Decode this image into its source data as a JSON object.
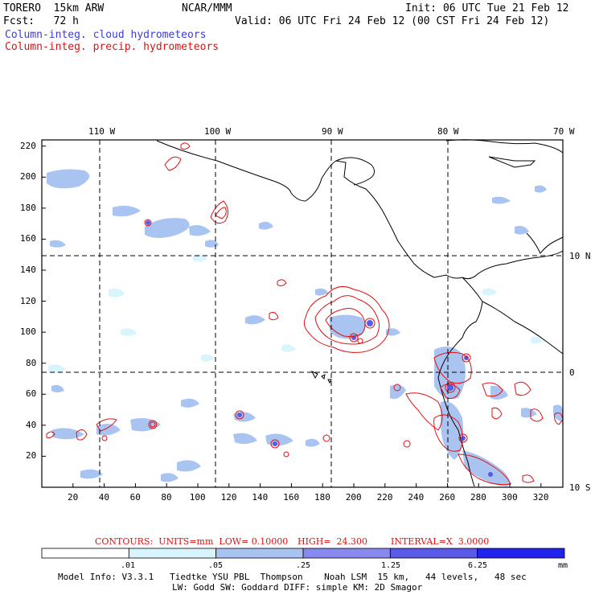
{
  "header": {
    "model": "TORERO  15km ARW",
    "org": "NCAR/MMM",
    "init": "Init: 06 UTC Tue 21 Feb 12",
    "fcst": "Fcst:   72 h",
    "valid": "Valid: 06 UTC Fri 24 Feb 12 (00 CST Fri 24 Feb 12)",
    "field_cloud": "Column-integ. cloud hydrometeors",
    "field_precip": "Column-integ. precip. hydrometeors"
  },
  "map": {
    "lon_labels": [
      "110 W",
      "100 W",
      "90 W",
      "80 W",
      "70 W"
    ],
    "lat_labels": [
      "10 N",
      "0",
      "10 S"
    ],
    "x_ticks": [
      "20",
      "40",
      "60",
      "80",
      "100",
      "120",
      "140",
      "160",
      "180",
      "200",
      "220",
      "240",
      "260",
      "280",
      "300",
      "320"
    ],
    "y_ticks": [
      "20",
      "40",
      "60",
      "80",
      "100",
      "120",
      "140",
      "160",
      "180",
      "200",
      "220"
    ]
  },
  "contours_text": {
    "units": "CONTOURS:  UNITS=mm  LOW= 0.10000",
    "high": "HIGH=  24.300",
    "interval": "INTERVAL=X  3.0000"
  },
  "colorbar": {
    "labels": [
      ".01",
      ".05",
      ".25",
      "1.25",
      "6.25"
    ],
    "unit": "mm",
    "colors": [
      "#ffffff",
      "#d8f4fc",
      "#aac4f2",
      "#8888ee",
      "#5a5ae8",
      "#2222ee"
    ]
  },
  "model_info": {
    "line1": "Model Info: V3.3.1   Tiedtke YSU PBL  Thompson    Noah LSM  15 km,   44 levels,   48 sec",
    "line2": "LW: Godd SW: Goddard DIFF: simple KM: 2D Smagor"
  },
  "colors": {
    "cloud": "#3b3bdc",
    "precip": "#e01010",
    "coast": "#000000"
  }
}
